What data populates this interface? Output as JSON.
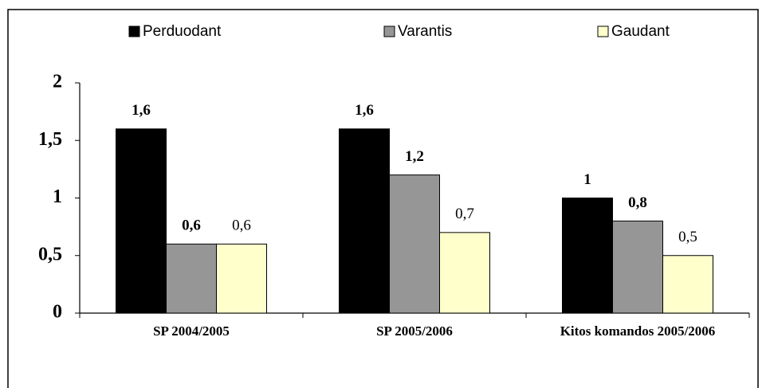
{
  "chart_data": {
    "type": "bar",
    "categories": [
      "SP 2004/2005",
      "SP 2005/2006",
      "Kitos komandos 2005/2006"
    ],
    "series": [
      {
        "name": "Perduodant",
        "color": "#000000",
        "values": [
          1.6,
          1.6,
          1
        ],
        "value_labels": [
          "1,6",
          "1,6",
          "1"
        ]
      },
      {
        "name": "Varantis",
        "color": "#969696",
        "values": [
          0.6,
          1.2,
          0.8
        ],
        "value_labels": [
          "0,6",
          "1,2",
          "0,8"
        ]
      },
      {
        "name": "Gaudant",
        "color": "#ffffcc",
        "values": [
          0.6,
          0.7,
          0.5
        ],
        "value_labels": [
          "0,6",
          "0,7",
          "0,5"
        ]
      }
    ],
    "ylim": [
      0,
      2
    ],
    "yticks": [
      0,
      {
        "value": 0.5,
        "label": "0,5"
      },
      1,
      {
        "value": 1.5,
        "label": "1,5"
      },
      2
    ],
    "legend": "top",
    "grid": false
  }
}
